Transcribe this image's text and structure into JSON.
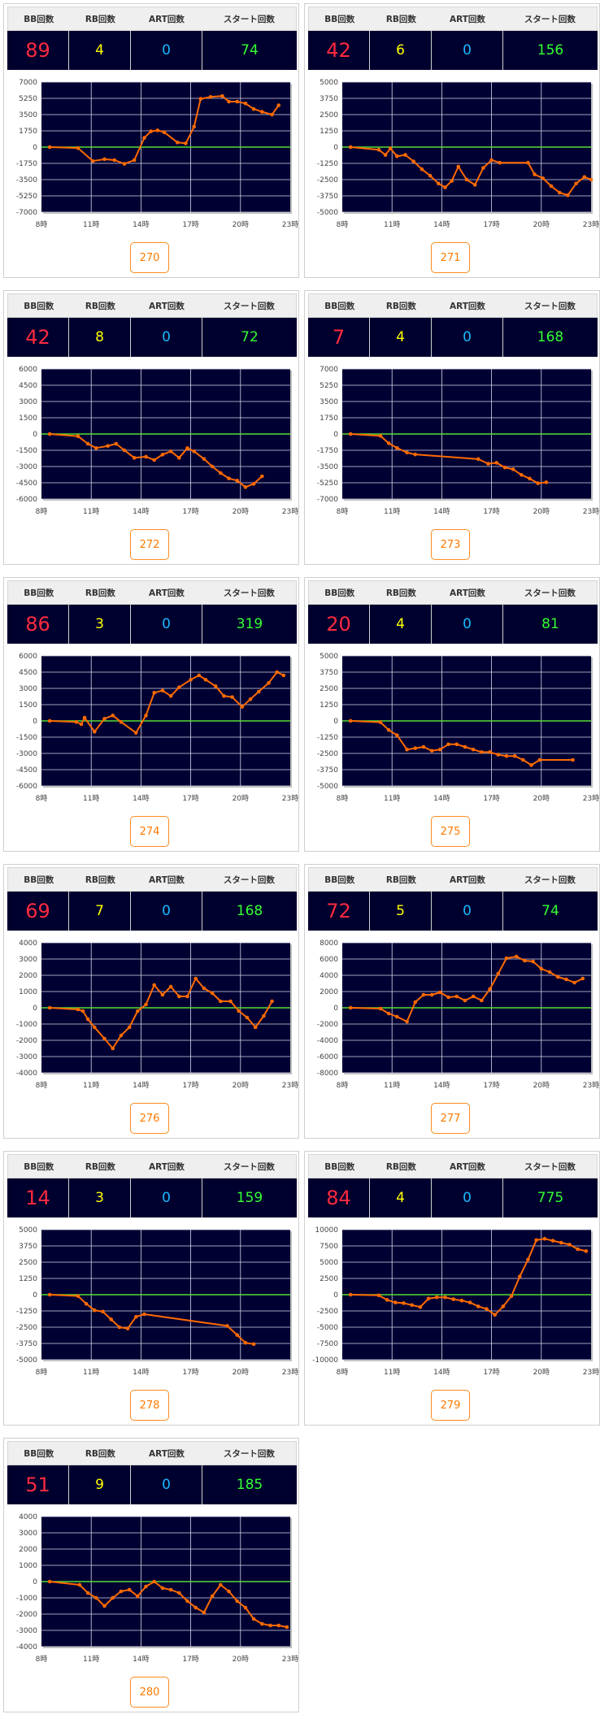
{
  "headers": {
    "bb": "BB回数",
    "rb": "RB回数",
    "art": "ART回数",
    "start": "スタート回数"
  },
  "chart_data": [
    {
      "type": "line",
      "machine": "270",
      "bb": "89",
      "rb": "4",
      "art": "0",
      "start": "74",
      "x_ticks": [
        "8時",
        "11時",
        "14時",
        "17時",
        "20時",
        "23時"
      ],
      "xlim": [
        8,
        23
      ],
      "y_ticks": [
        7000,
        5250,
        3500,
        1750,
        0,
        -1750,
        -3500,
        -5250,
        -7000
      ],
      "ylim": [
        -7000,
        7000
      ],
      "series": [
        {
          "x": [
            8.5,
            10.2,
            11.1,
            11.8,
            12.4,
            13.0,
            13.6,
            14.2,
            14.6,
            15.0,
            15.4,
            16.2,
            16.7,
            17.2,
            17.6,
            18.2,
            18.9,
            19.3,
            19.8,
            20.3,
            20.8,
            21.3,
            21.9,
            22.3
          ],
          "y": [
            0,
            -100,
            -1500,
            -1300,
            -1400,
            -1800,
            -1400,
            1000,
            1700,
            1800,
            1600,
            500,
            400,
            2200,
            5200,
            5400,
            5500,
            4900,
            4900,
            4700,
            4100,
            3800,
            3500,
            4500
          ]
        }
      ]
    },
    {
      "type": "line",
      "machine": "271",
      "bb": "42",
      "rb": "6",
      "art": "0",
      "start": "156",
      "x_ticks": [
        "8時",
        "11時",
        "14時",
        "17時",
        "20時",
        "23時"
      ],
      "xlim": [
        8,
        23
      ],
      "y_ticks": [
        5000,
        3750,
        2500,
        1250,
        0,
        -1250,
        -2500,
        -3750,
        -5000
      ],
      "ylim": [
        -5000,
        5000
      ],
      "series": [
        {
          "x": [
            8.5,
            10.2,
            10.6,
            10.9,
            11.3,
            11.8,
            12.3,
            12.8,
            13.3,
            13.8,
            14.2,
            14.6,
            15.0,
            15.5,
            16.0,
            16.5,
            17.0,
            17.5,
            19.2,
            19.6,
            20.1,
            20.6,
            21.1,
            21.6,
            22.1,
            22.6,
            23.0
          ],
          "y": [
            0,
            -200,
            -600,
            -100,
            -700,
            -600,
            -1100,
            -1700,
            -2200,
            -2800,
            -3100,
            -2600,
            -1500,
            -2500,
            -2900,
            -1600,
            -1000,
            -1200,
            -1200,
            -2100,
            -2400,
            -3000,
            -3500,
            -3700,
            -2800,
            -2300,
            -2500
          ]
        }
      ]
    },
    {
      "type": "line",
      "machine": "272",
      "bb": "42",
      "rb": "8",
      "art": "0",
      "start": "72",
      "x_ticks": [
        "8時",
        "11時",
        "14時",
        "17時",
        "20時",
        "23時"
      ],
      "xlim": [
        8,
        23
      ],
      "y_ticks": [
        6000,
        4500,
        3000,
        1500,
        0,
        -1500,
        -3000,
        -4500,
        -6000
      ],
      "ylim": [
        -6000,
        6000
      ],
      "series": [
        {
          "x": [
            8.5,
            10.2,
            10.8,
            11.3,
            12.0,
            12.5,
            13.0,
            13.6,
            14.3,
            14.8,
            15.3,
            15.8,
            16.3,
            16.8,
            17.2,
            17.8,
            18.3,
            18.8,
            19.3,
            19.8,
            20.3,
            20.8,
            21.3
          ],
          "y": [
            0,
            -200,
            -900,
            -1300,
            -1100,
            -900,
            -1500,
            -2200,
            -2100,
            -2400,
            -1900,
            -1600,
            -2200,
            -1300,
            -1600,
            -2300,
            -3000,
            -3600,
            -4100,
            -4300,
            -4900,
            -4600,
            -3900
          ]
        }
      ]
    },
    {
      "type": "line",
      "machine": "273",
      "bb": "7",
      "rb": "4",
      "art": "0",
      "start": "168",
      "x_ticks": [
        "8時",
        "11時",
        "14時",
        "17時",
        "20時",
        "23時"
      ],
      "xlim": [
        8,
        23
      ],
      "y_ticks": [
        7000,
        5250,
        3500,
        1750,
        0,
        -1750,
        -3500,
        -5250,
        -7000
      ],
      "ylim": [
        -7000,
        7000
      ],
      "series": [
        {
          "x": [
            8.5,
            10.3,
            10.8,
            11.3,
            11.9,
            12.4,
            16.2,
            16.8,
            17.3,
            17.8,
            18.3,
            18.8,
            19.3,
            19.8,
            20.3
          ],
          "y": [
            0,
            -200,
            -1000,
            -1500,
            -2000,
            -2200,
            -2700,
            -3200,
            -3100,
            -3600,
            -3800,
            -4400,
            -4800,
            -5300,
            -5200
          ]
        }
      ]
    },
    {
      "type": "line",
      "machine": "274",
      "bb": "86",
      "rb": "3",
      "art": "0",
      "start": "319",
      "x_ticks": [
        "8時",
        "11時",
        "14時",
        "17時",
        "20時",
        "23時"
      ],
      "xlim": [
        8,
        23
      ],
      "y_ticks": [
        6000,
        4500,
        3000,
        1500,
        0,
        -1500,
        -3000,
        -4500,
        -6000
      ],
      "ylim": [
        -6000,
        6000
      ],
      "series": [
        {
          "x": [
            8.5,
            10.1,
            10.4,
            10.6,
            11.2,
            11.8,
            12.3,
            12.8,
            13.7,
            14.3,
            14.8,
            15.3,
            15.8,
            16.3,
            17.0,
            17.5,
            17.9,
            18.5,
            19.0,
            19.5,
            20.1,
            20.6,
            21.1,
            21.7,
            22.2,
            22.6
          ],
          "y": [
            0,
            -100,
            -300,
            300,
            -1000,
            200,
            500,
            -100,
            -1100,
            500,
            2600,
            2800,
            2300,
            3100,
            3800,
            4200,
            3800,
            3200,
            2300,
            2200,
            1300,
            2000,
            2700,
            3500,
            4500,
            4200
          ]
        }
      ]
    },
    {
      "type": "line",
      "machine": "275",
      "bb": "20",
      "rb": "4",
      "art": "0",
      "start": "81",
      "x_ticks": [
        "8時",
        "11時",
        "14時",
        "17時",
        "20時",
        "23時"
      ],
      "xlim": [
        8,
        23
      ],
      "y_ticks": [
        5000,
        3750,
        2500,
        1250,
        0,
        -1250,
        -2500,
        -3750,
        -5000
      ],
      "ylim": [
        -5000,
        5000
      ],
      "series": [
        {
          "x": [
            8.5,
            10.3,
            10.8,
            11.3,
            11.9,
            12.4,
            12.9,
            13.4,
            13.9,
            14.4,
            14.9,
            15.4,
            15.9,
            16.4,
            16.9,
            17.4,
            17.9,
            18.4,
            18.9,
            19.4,
            19.9,
            21.9
          ],
          "y": [
            0,
            -100,
            -700,
            -1100,
            -2200,
            -2100,
            -2000,
            -2300,
            -2200,
            -1800,
            -1800,
            -2000,
            -2200,
            -2400,
            -2400,
            -2600,
            -2700,
            -2700,
            -3000,
            -3400,
            -3000,
            -3000
          ]
        }
      ]
    },
    {
      "type": "line",
      "machine": "276",
      "bb": "69",
      "rb": "7",
      "art": "0",
      "start": "168",
      "x_ticks": [
        "8時",
        "11時",
        "14時",
        "17時",
        "20時",
        "23時"
      ],
      "xlim": [
        8,
        23
      ],
      "y_ticks": [
        4000,
        3000,
        2000,
        1000,
        0,
        -1000,
        -2000,
        -3000,
        -4000
      ],
      "ylim": [
        -4000,
        4000
      ],
      "series": [
        {
          "x": [
            8.5,
            10.2,
            10.5,
            10.8,
            11.2,
            11.8,
            12.3,
            12.8,
            13.3,
            13.8,
            14.3,
            14.8,
            15.3,
            15.8,
            16.3,
            16.8,
            17.3,
            17.8,
            18.3,
            18.8,
            19.4,
            19.9,
            20.4,
            20.9,
            21.4,
            21.9
          ],
          "y": [
            0,
            -100,
            -200,
            -700,
            -1200,
            -1900,
            -2500,
            -1700,
            -1200,
            -200,
            200,
            1400,
            800,
            1300,
            700,
            700,
            1800,
            1200,
            900,
            400,
            400,
            -200,
            -600,
            -1200,
            -500,
            400
          ]
        }
      ]
    },
    {
      "type": "line",
      "machine": "277",
      "bb": "72",
      "rb": "5",
      "art": "0",
      "start": "74",
      "x_ticks": [
        "8時",
        "11時",
        "14時",
        "17時",
        "20時",
        "23時"
      ],
      "xlim": [
        8,
        23
      ],
      "y_ticks": [
        8000,
        6000,
        4000,
        2000,
        0,
        -2000,
        -4000,
        -6000,
        -8000
      ],
      "ylim": [
        -8000,
        8000
      ],
      "series": [
        {
          "x": [
            8.5,
            10.3,
            10.8,
            11.3,
            11.9,
            12.4,
            12.9,
            13.4,
            13.9,
            14.4,
            14.9,
            15.4,
            15.9,
            16.4,
            16.9,
            17.4,
            17.9,
            18.5,
            19.0,
            19.5,
            20.0,
            20.5,
            21.0,
            21.5,
            22.0,
            22.5
          ],
          "y": [
            0,
            -100,
            -700,
            -1100,
            -1700,
            700,
            1600,
            1600,
            1900,
            1300,
            1400,
            900,
            1400,
            900,
            2300,
            4200,
            6100,
            6300,
            5800,
            5700,
            4800,
            4400,
            3800,
            3500,
            3100,
            3600
          ]
        }
      ]
    },
    {
      "type": "line",
      "machine": "278",
      "bb": "14",
      "rb": "3",
      "art": "0",
      "start": "159",
      "x_ticks": [
        "8時",
        "11時",
        "14時",
        "17時",
        "20時",
        "23時"
      ],
      "xlim": [
        8,
        23
      ],
      "y_ticks": [
        5000,
        3750,
        2500,
        1250,
        0,
        -1250,
        -2500,
        -3750,
        -5000
      ],
      "ylim": [
        -5000,
        5000
      ],
      "series": [
        {
          "x": [
            8.5,
            10.2,
            10.7,
            11.2,
            11.7,
            12.2,
            12.7,
            13.2,
            13.7,
            14.2,
            19.2,
            19.8,
            20.3,
            20.8
          ],
          "y": [
            0,
            -100,
            -700,
            -1200,
            -1300,
            -1900,
            -2500,
            -2600,
            -1700,
            -1500,
            -2400,
            -3100,
            -3700,
            -3800
          ]
        }
      ]
    },
    {
      "type": "line",
      "machine": "279",
      "bb": "84",
      "rb": "4",
      "art": "0",
      "start": "775",
      "x_ticks": [
        "8時",
        "11時",
        "14時",
        "17時",
        "20時",
        "23時"
      ],
      "xlim": [
        8,
        23
      ],
      "y_ticks": [
        10000,
        7500,
        5000,
        2500,
        0,
        -2500,
        -5000,
        -7500,
        -10000
      ],
      "ylim": [
        -10000,
        10000
      ],
      "series": [
        {
          "x": [
            8.5,
            10.2,
            10.7,
            11.2,
            11.7,
            12.2,
            12.7,
            13.2,
            13.7,
            14.2,
            14.7,
            15.2,
            15.7,
            16.2,
            16.7,
            17.2,
            17.7,
            18.2,
            18.7,
            19.2,
            19.7,
            20.2,
            20.7,
            21.2,
            21.7,
            22.2,
            22.7
          ],
          "y": [
            0,
            -100,
            -800,
            -1200,
            -1300,
            -1600,
            -1900,
            -600,
            -400,
            -400,
            -700,
            -900,
            -1200,
            -1800,
            -2200,
            -3100,
            -1800,
            -200,
            2800,
            5400,
            8400,
            8600,
            8300,
            8000,
            7700,
            7000,
            6700
          ]
        }
      ]
    },
    {
      "type": "line",
      "machine": "280",
      "bb": "51",
      "rb": "9",
      "art": "0",
      "start": "185",
      "x_ticks": [
        "8時",
        "11時",
        "14時",
        "17時",
        "20時",
        "23時"
      ],
      "xlim": [
        8,
        23
      ],
      "y_ticks": [
        4000,
        3000,
        2000,
        1000,
        0,
        -1000,
        -2000,
        -3000,
        -4000
      ],
      "ylim": [
        -4000,
        4000
      ],
      "series": [
        {
          "x": [
            8.5,
            10.3,
            10.8,
            11.3,
            11.8,
            12.3,
            12.8,
            13.3,
            13.8,
            14.3,
            14.8,
            15.3,
            15.8,
            16.3,
            16.8,
            17.3,
            17.8,
            18.3,
            18.8,
            19.3,
            19.8,
            20.3,
            20.8,
            21.3,
            21.8,
            22.3,
            22.8
          ],
          "y": [
            0,
            -200,
            -700,
            -1000,
            -1500,
            -1000,
            -600,
            -500,
            -900,
            -300,
            0,
            -400,
            -500,
            -700,
            -1200,
            -1600,
            -1900,
            -900,
            -200,
            -600,
            -1200,
            -1600,
            -2300,
            -2600,
            -2700,
            -2700,
            -2800
          ]
        }
      ]
    }
  ]
}
